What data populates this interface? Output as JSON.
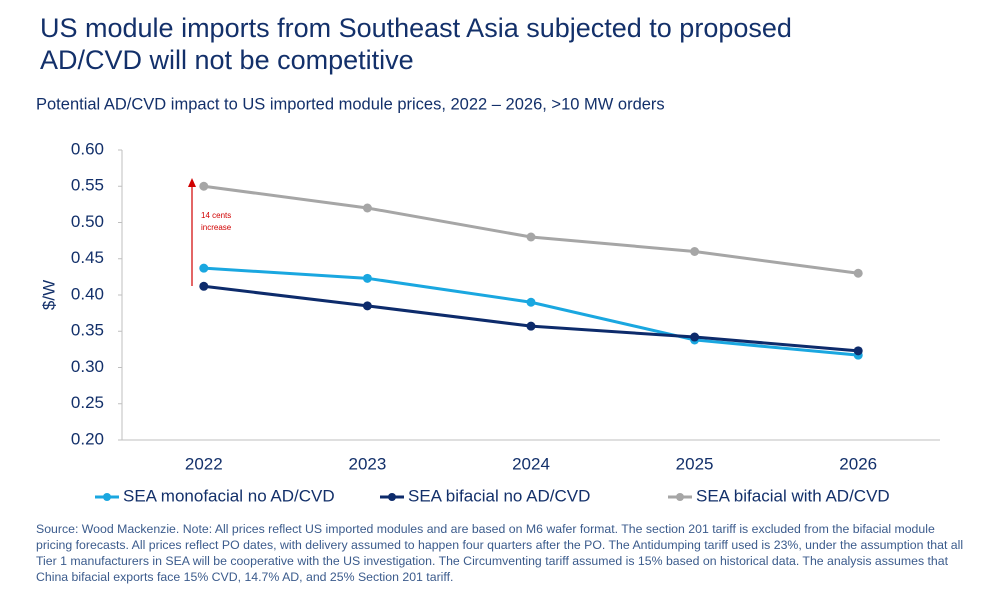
{
  "chart_data": {
    "type": "line",
    "title": [
      "US module imports from Southeast Asia subjected to proposed",
      "AD/CVD will not be competitive"
    ],
    "subtitle": "Potential AD/CVD impact to US imported module prices, 2022 – 2026, >10 MW orders",
    "y_label": "$/W",
    "categories": [
      "2022",
      "2023",
      "2024",
      "2025",
      "2026"
    ],
    "series": [
      {
        "name": "SEA monofacial no AD/CVD",
        "color": "#1aa7e0",
        "values": [
          0.437,
          0.423,
          0.39,
          0.338,
          0.317
        ]
      },
      {
        "name": "SEA bifacial no AD/CVD",
        "color": "#0d2b6b",
        "values": [
          0.412,
          0.385,
          0.357,
          0.342,
          0.323
        ]
      },
      {
        "name": "SEA bifacial with AD/CVD",
        "color": "#a6a6a6",
        "values": [
          0.55,
          0.52,
          0.48,
          0.46,
          0.43
        ]
      }
    ],
    "ylim": [
      0.2,
      0.6
    ],
    "yticks": [
      {
        "value": 0.2,
        "label": "0.20"
      },
      0.25,
      {
        "value": 0.3,
        "label": "0.30"
      },
      0.35,
      {
        "value": 0.4,
        "label": "0.40"
      },
      0.45,
      {
        "value": 0.5,
        "label": "0.50"
      },
      0.55,
      {
        "value": 0.6,
        "label": "0.60"
      }
    ],
    "grid": false,
    "annotation": [
      "14 cents",
      "increase"
    ],
    "source": "Source: Wood Mackenzie. Note: All prices reflect US imported modules and are based on M6 wafer format. The section 201 tariff is excluded from the bifacial module pricing forecasts. All prices reflect PO dates, with delivery assumed to happen four quarters after the PO. The Antidumping tariff used is 23%, under the assumption that all Tier 1 manufacturers in SEA will be cooperative with the US investigation. The Circumventing tariff assumed is 15% based on historical data. The analysis assumes that China bifacial exports face 15% CVD, 14.7% AD, and 25% Section 201 tariff."
  }
}
